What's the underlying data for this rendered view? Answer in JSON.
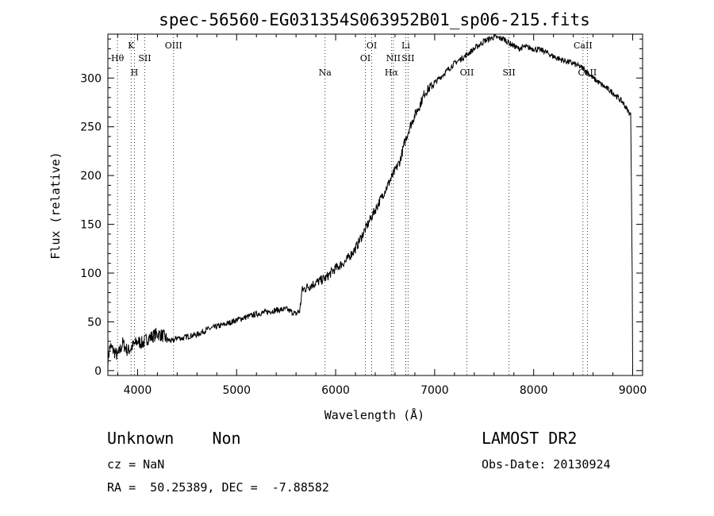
{
  "chart_data": {
    "type": "line",
    "title": "spec-56560-EG031354S063952B01_sp06-215.fits",
    "xlabel": "Wavelength (Å)",
    "ylabel": "Flux (relative)",
    "xlim": [
      3700,
      9100
    ],
    "ylim": [
      -5,
      345
    ],
    "xticks": [
      4000,
      5000,
      6000,
      7000,
      8000,
      9000
    ],
    "yticks": [
      0,
      50,
      100,
      150,
      200,
      250,
      300
    ],
    "grid": false,
    "series": [
      {
        "x": [
          3700,
          3720,
          3760,
          3800,
          3850,
          3900,
          3950,
          4000,
          4050,
          4100,
          4150,
          4200,
          4250,
          4300,
          4350,
          4400,
          4450,
          4500,
          4600,
          4700,
          4800,
          4900,
          5000,
          5100,
          5200,
          5300,
          5400,
          5500,
          5600,
          5640,
          5660,
          5700,
          5800,
          5900,
          6000,
          6100,
          6200,
          6300,
          6400,
          6450,
          6500,
          6550,
          6600,
          6650,
          6700,
          6750,
          6800,
          6850,
          6900,
          7000,
          7100,
          7200,
          7300,
          7400,
          7500,
          7600,
          7700,
          7750,
          7800,
          7850,
          7900,
          8000,
          8100,
          8200,
          8300,
          8400,
          8500,
          8550,
          8600,
          8700,
          8800,
          8900,
          8980,
          8995,
          9000
        ],
        "y": [
          10,
          25,
          20,
          15,
          28,
          20,
          25,
          30,
          28,
          33,
          35,
          38,
          36,
          32,
          30,
          34,
          33,
          35,
          37,
          42,
          45,
          48,
          52,
          55,
          58,
          60,
          62,
          63,
          58,
          62,
          82,
          85,
          90,
          95,
          105,
          112,
          125,
          145,
          165,
          175,
          185,
          195,
          205,
          215,
          235,
          250,
          262,
          272,
          285,
          295,
          305,
          315,
          322,
          330,
          338,
          342,
          340,
          336,
          333,
          330,
          332,
          330,
          328,
          322,
          318,
          315,
          310,
          305,
          300,
          292,
          285,
          275,
          262,
          100,
          0
        ]
      }
    ],
    "lines": [
      {
        "label": "Hθ",
        "x": 3797,
        "row": 2
      },
      {
        "label": "K",
        "x": 3934,
        "row": 1
      },
      {
        "label": "H",
        "x": 3968,
        "row": 3
      },
      {
        "label": "SII",
        "x": 4072,
        "row": 2
      },
      {
        "label": "OIII",
        "x": 4363,
        "row": 1
      },
      {
        "label": "Na",
        "x": 5893,
        "row": 3
      },
      {
        "label": "OI",
        "x": 6300,
        "row": 2
      },
      {
        "label": "OI",
        "x": 6364,
        "row": 1
      },
      {
        "label": "Hα",
        "x": 6563,
        "row": 3
      },
      {
        "label": "NII",
        "x": 6583,
        "row": 2
      },
      {
        "label": "Li",
        "x": 6708,
        "row": 1
      },
      {
        "label": "SII",
        "x": 6731,
        "row": 2
      },
      {
        "label": "OII",
        "x": 7325,
        "row": 3
      },
      {
        "label": "SII",
        "x": 7751,
        "row": 3
      },
      {
        "label": "CaII",
        "x": 8498,
        "row": 1
      },
      {
        "label": "CaII",
        "x": 8542,
        "row": 3
      }
    ]
  },
  "info": {
    "classification": "Unknown    Non",
    "survey": "LAMOST DR2",
    "cz": "cz = NaN",
    "obs_date": "Obs-Date: 20130924",
    "coords": "RA =  50.25389, DEC =  -7.88582"
  }
}
